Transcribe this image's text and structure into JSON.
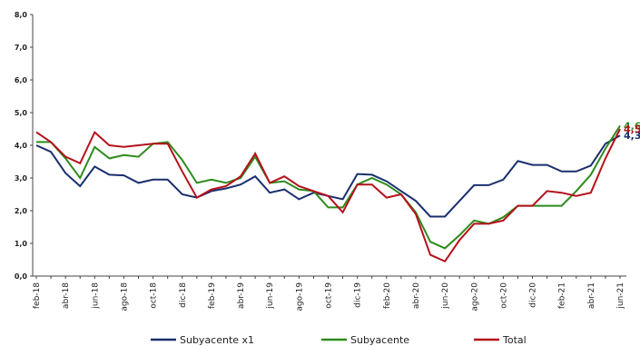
{
  "chart_data": {
    "type": "line",
    "categories": [
      "feb-18",
      null,
      "abr-18",
      null,
      "jun-18",
      null,
      "ago-18",
      null,
      "oct-18",
      null,
      "dic-18",
      null,
      "feb-19",
      null,
      "abr-19",
      null,
      "jun-19",
      null,
      "ago-19",
      null,
      "oct-19",
      null,
      "dic-19",
      null,
      "feb-20",
      null,
      "abr-20",
      null,
      "jun-20",
      null,
      "ago-20",
      null,
      "oct-20",
      null,
      "dic-20",
      null,
      "feb-21",
      null,
      "abr-21",
      null,
      "jun-21"
    ],
    "series": [
      {
        "name": "Subyacente x1",
        "color": "#1a2f6e",
        "values": [
          4.0,
          3.8,
          3.15,
          2.75,
          3.35,
          3.1,
          3.08,
          2.85,
          2.95,
          2.95,
          2.5,
          2.4,
          2.6,
          2.68,
          2.8,
          3.05,
          2.55,
          2.65,
          2.35,
          2.55,
          2.45,
          2.35,
          3.12,
          3.1,
          2.9,
          2.6,
          2.3,
          1.82,
          1.82,
          2.3,
          2.78,
          2.78,
          2.95,
          3.52,
          3.4,
          3.4,
          3.2,
          3.2,
          3.38,
          4.05,
          4.3
        ],
        "value_labels": [
          null,
          null,
          null,
          null,
          null,
          null,
          null,
          null,
          null,
          null,
          null,
          null,
          null,
          null,
          null,
          null,
          null,
          null,
          null,
          null,
          null,
          null,
          null,
          null,
          null,
          null,
          null,
          null,
          null,
          null,
          null,
          null,
          null,
          null,
          null,
          null,
          null,
          null,
          null,
          null,
          "4,3"
        ]
      },
      {
        "name": "Subyacente",
        "color": "#2e8b1e",
        "values": [
          4.1,
          4.1,
          3.6,
          3.0,
          3.95,
          3.6,
          3.7,
          3.65,
          4.05,
          4.1,
          3.55,
          2.85,
          2.95,
          2.85,
          3.0,
          3.65,
          2.85,
          2.9,
          2.65,
          2.6,
          2.1,
          2.1,
          2.8,
          3.0,
          2.8,
          2.5,
          1.95,
          1.05,
          0.85,
          1.25,
          1.7,
          1.6,
          1.8,
          2.15,
          2.15,
          2.15,
          2.15,
          2.6,
          3.1,
          3.9,
          4.6
        ],
        "value_labels": [
          null,
          null,
          null,
          null,
          null,
          null,
          null,
          null,
          null,
          null,
          null,
          null,
          null,
          null,
          null,
          null,
          null,
          null,
          null,
          null,
          null,
          null,
          null,
          null,
          null,
          null,
          null,
          null,
          null,
          null,
          null,
          null,
          null,
          null,
          null,
          null,
          null,
          null,
          null,
          null,
          "4,6"
        ]
      },
      {
        "name": "Total",
        "color": "#b5121b",
        "values": [
          4.4,
          4.1,
          3.65,
          3.45,
          4.4,
          4.0,
          3.95,
          4.0,
          4.05,
          4.05,
          3.2,
          2.4,
          2.65,
          2.75,
          3.05,
          3.75,
          2.85,
          3.05,
          2.75,
          2.6,
          2.45,
          1.95,
          2.8,
          2.8,
          2.4,
          2.5,
          1.9,
          0.65,
          0.45,
          1.1,
          1.6,
          1.6,
          1.7,
          2.15,
          2.15,
          2.6,
          2.55,
          2.45,
          2.55,
          3.6,
          4.5
        ],
        "value_labels": [
          null,
          null,
          null,
          null,
          null,
          null,
          null,
          null,
          null,
          null,
          null,
          null,
          null,
          null,
          null,
          null,
          null,
          null,
          null,
          null,
          null,
          null,
          null,
          null,
          null,
          null,
          null,
          null,
          null,
          null,
          null,
          null,
          null,
          null,
          null,
          null,
          null,
          null,
          null,
          null,
          "4,5"
        ]
      }
    ],
    "ylim": [
      0,
      8
    ],
    "yticks": [
      {
        "value": 0,
        "label": "0,0"
      },
      {
        "value": 1,
        "label": "1,0"
      },
      {
        "value": 2,
        "label": "2,0"
      },
      {
        "value": 3,
        "label": "3,0"
      },
      {
        "value": 4,
        "label": "4,0"
      },
      {
        "value": 5,
        "label": "5,0"
      },
      {
        "value": 6,
        "label": "6,0"
      },
      {
        "value": 7,
        "label": "7,0"
      },
      {
        "value": 8,
        "label": "8,0"
      }
    ],
    "grid": false
  }
}
